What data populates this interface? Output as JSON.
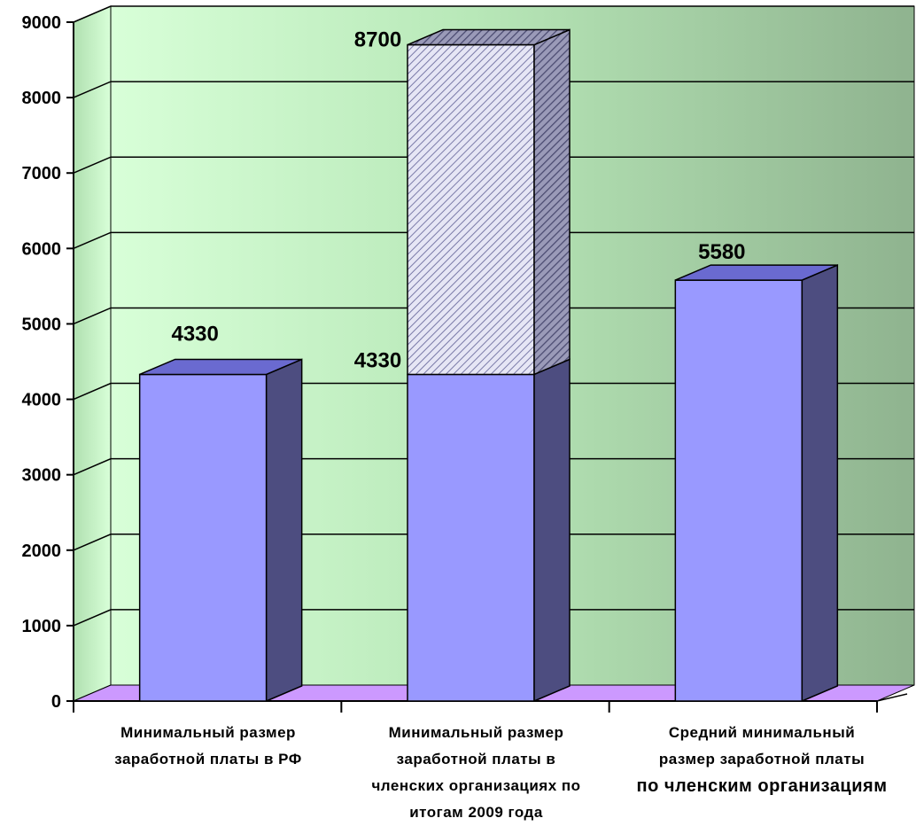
{
  "chart_data": {
    "type": "bar",
    "stacked": true,
    "three_d": true,
    "categories": [
      [
        "Минимальный размер",
        "заработной платы в РФ"
      ],
      [
        "Минимальный размер",
        "заработной платы в",
        "членских организациях по",
        "итогам 2009 года"
      ],
      [
        "Средний минимальный",
        "размер заработной платы",
        "по членским организациям"
      ]
    ],
    "series": [
      {
        "values": [
          4330,
          4330,
          5580
        ],
        "color": "#9999ff",
        "side_color": "#4d4d80",
        "top_color": "#6a6ad0"
      },
      {
        "values": [
          0,
          4370,
          0
        ],
        "color": "#d8d8f0",
        "pattern": "diagonal-hatch",
        "side_color": "#6a6a90"
      }
    ],
    "data_labels": [
      {
        "bar": 0,
        "text": "4330"
      },
      {
        "bar": 1,
        "text": "4330"
      },
      {
        "bar": 1,
        "text": "8700"
      },
      {
        "bar": 2,
        "text": "5580"
      }
    ],
    "yticks": [
      "0",
      "1000",
      "2000",
      "3000",
      "4000",
      "5000",
      "6000",
      "7000",
      "8000",
      "9000"
    ],
    "ylim": [
      0,
      9000
    ],
    "grid": true,
    "legend": "none",
    "colors": {
      "wall_light": "#ccffcc",
      "wall_dark": "#8fb38f",
      "floor": "#cc99ff",
      "grid": "#000000"
    }
  }
}
